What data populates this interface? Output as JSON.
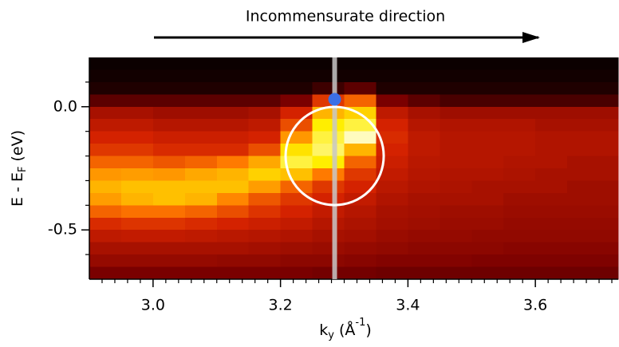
{
  "chart_data": {
    "type": "heatmap",
    "annotation": "Incommensurate direction",
    "xlabel": [
      "k",
      "y",
      " (Å",
      "-1",
      ")"
    ],
    "ylabel": [
      "E - E",
      "F",
      " (eV)"
    ],
    "xlim": [
      2.9,
      3.73
    ],
    "ylim": [
      -0.7,
      0.2
    ],
    "xticks": [
      {
        "value": 3.0,
        "label": "3.0"
      },
      3.2,
      3.4,
      3.6
    ],
    "yticks": [
      {
        "value": 0,
        "label": "0.0"
      },
      -0.5
    ],
    "x_minor_ticks": [
      2.92,
      2.94,
      2.96,
      2.98,
      3.02,
      3.04,
      3.06,
      3.08,
      3.1,
      3.12,
      3.14,
      3.16,
      3.18,
      3.22,
      3.24,
      3.26,
      3.28,
      3.3,
      3.32,
      3.34,
      3.36,
      3.38,
      3.42,
      3.44,
      3.46,
      3.48,
      3.5,
      3.52,
      3.54,
      3.56,
      3.58,
      3.62,
      3.64,
      3.66,
      3.68,
      3.7,
      3.72
    ],
    "y_minor_ticks": [
      0.1,
      -0.1,
      -0.2,
      -0.3,
      -0.4,
      -0.6
    ],
    "zlim": [
      0,
      1
    ],
    "colormap": [
      "#000000",
      "#7a0000",
      "#d42200",
      "#ff7a00",
      "#ffee00",
      "#ffffff"
    ],
    "x_edges": [
      2.9,
      2.95,
      3.0,
      3.05,
      3.1,
      3.15,
      3.2,
      3.25,
      3.3,
      3.35,
      3.4,
      3.45,
      3.5,
      3.55,
      3.6,
      3.65,
      3.73
    ],
    "y_edges": [
      0.2,
      0.15,
      0.1,
      0.05,
      0,
      -0.05,
      -0.1,
      -0.15,
      -0.2,
      -0.25,
      -0.3,
      -0.35,
      -0.4,
      -0.45,
      -0.5,
      -0.55,
      -0.6,
      -0.65,
      -0.7
    ],
    "z": [
      [
        0.02,
        0.02,
        0.02,
        0.02,
        0.02,
        0.02,
        0.02,
        0.02,
        0.02,
        0.02,
        0.02,
        0.02,
        0.02,
        0.02,
        0.02,
        0.02
      ],
      [
        0.03,
        0.03,
        0.03,
        0.03,
        0.03,
        0.03,
        0.03,
        0.03,
        0.03,
        0.03,
        0.03,
        0.03,
        0.03,
        0.03,
        0.03,
        0.03
      ],
      [
        0.05,
        0.05,
        0.05,
        0.05,
        0.05,
        0.05,
        0.05,
        0.1,
        0.15,
        0.05,
        0.05,
        0.05,
        0.05,
        0.05,
        0.05,
        0.05
      ],
      [
        0.15,
        0.15,
        0.15,
        0.15,
        0.15,
        0.15,
        0.2,
        0.45,
        0.55,
        0.2,
        0.15,
        0.12,
        0.12,
        0.12,
        0.12,
        0.12
      ],
      [
        0.3,
        0.3,
        0.28,
        0.28,
        0.28,
        0.3,
        0.4,
        0.7,
        0.75,
        0.35,
        0.3,
        0.28,
        0.28,
        0.28,
        0.28,
        0.28
      ],
      [
        0.35,
        0.35,
        0.33,
        0.33,
        0.33,
        0.35,
        0.5,
        0.8,
        0.85,
        0.4,
        0.33,
        0.32,
        0.32,
        0.32,
        0.3,
        0.3
      ],
      [
        0.4,
        0.4,
        0.38,
        0.38,
        0.38,
        0.4,
        0.65,
        0.85,
        0.95,
        0.42,
        0.35,
        0.33,
        0.33,
        0.33,
        0.32,
        0.32
      ],
      [
        0.45,
        0.45,
        0.42,
        0.42,
        0.42,
        0.5,
        0.78,
        0.88,
        0.7,
        0.4,
        0.35,
        0.33,
        0.33,
        0.33,
        0.32,
        0.32
      ],
      [
        0.55,
        0.55,
        0.52,
        0.55,
        0.6,
        0.68,
        0.85,
        0.8,
        0.55,
        0.38,
        0.34,
        0.33,
        0.33,
        0.32,
        0.32,
        0.3
      ],
      [
        0.65,
        0.66,
        0.65,
        0.68,
        0.7,
        0.75,
        0.72,
        0.6,
        0.45,
        0.36,
        0.33,
        0.32,
        0.32,
        0.31,
        0.3,
        0.3
      ],
      [
        0.7,
        0.72,
        0.72,
        0.72,
        0.72,
        0.66,
        0.55,
        0.45,
        0.4,
        0.34,
        0.32,
        0.31,
        0.3,
        0.3,
        0.3,
        0.28
      ],
      [
        0.66,
        0.7,
        0.72,
        0.7,
        0.62,
        0.52,
        0.45,
        0.4,
        0.36,
        0.32,
        0.3,
        0.3,
        0.3,
        0.28,
        0.28,
        0.28
      ],
      [
        0.55,
        0.58,
        0.58,
        0.55,
        0.5,
        0.44,
        0.4,
        0.36,
        0.33,
        0.3,
        0.29,
        0.28,
        0.28,
        0.27,
        0.27,
        0.27
      ],
      [
        0.42,
        0.44,
        0.44,
        0.42,
        0.4,
        0.38,
        0.36,
        0.33,
        0.31,
        0.29,
        0.28,
        0.27,
        0.27,
        0.26,
        0.26,
        0.26
      ],
      [
        0.35,
        0.36,
        0.36,
        0.35,
        0.34,
        0.33,
        0.32,
        0.3,
        0.29,
        0.27,
        0.26,
        0.26,
        0.25,
        0.25,
        0.25,
        0.25
      ],
      [
        0.3,
        0.3,
        0.3,
        0.3,
        0.3,
        0.29,
        0.28,
        0.27,
        0.26,
        0.25,
        0.24,
        0.24,
        0.24,
        0.23,
        0.23,
        0.23
      ],
      [
        0.26,
        0.26,
        0.26,
        0.26,
        0.25,
        0.25,
        0.24,
        0.24,
        0.23,
        0.22,
        0.22,
        0.22,
        0.21,
        0.21,
        0.21,
        0.21
      ],
      [
        0.2,
        0.2,
        0.2,
        0.2,
        0.2,
        0.2,
        0.2,
        0.19,
        0.19,
        0.18,
        0.18,
        0.18,
        0.18,
        0.18,
        0.18,
        0.18
      ]
    ],
    "marker_line": {
      "x": 3.285,
      "color": "#c8c8c8"
    },
    "marker_point": {
      "x": 3.285,
      "y": 0.03,
      "color": "#3b6fe6"
    },
    "marker_circle": {
      "x": 3.285,
      "y": -0.2,
      "r": 0.077,
      "color": "#ffffff"
    }
  }
}
